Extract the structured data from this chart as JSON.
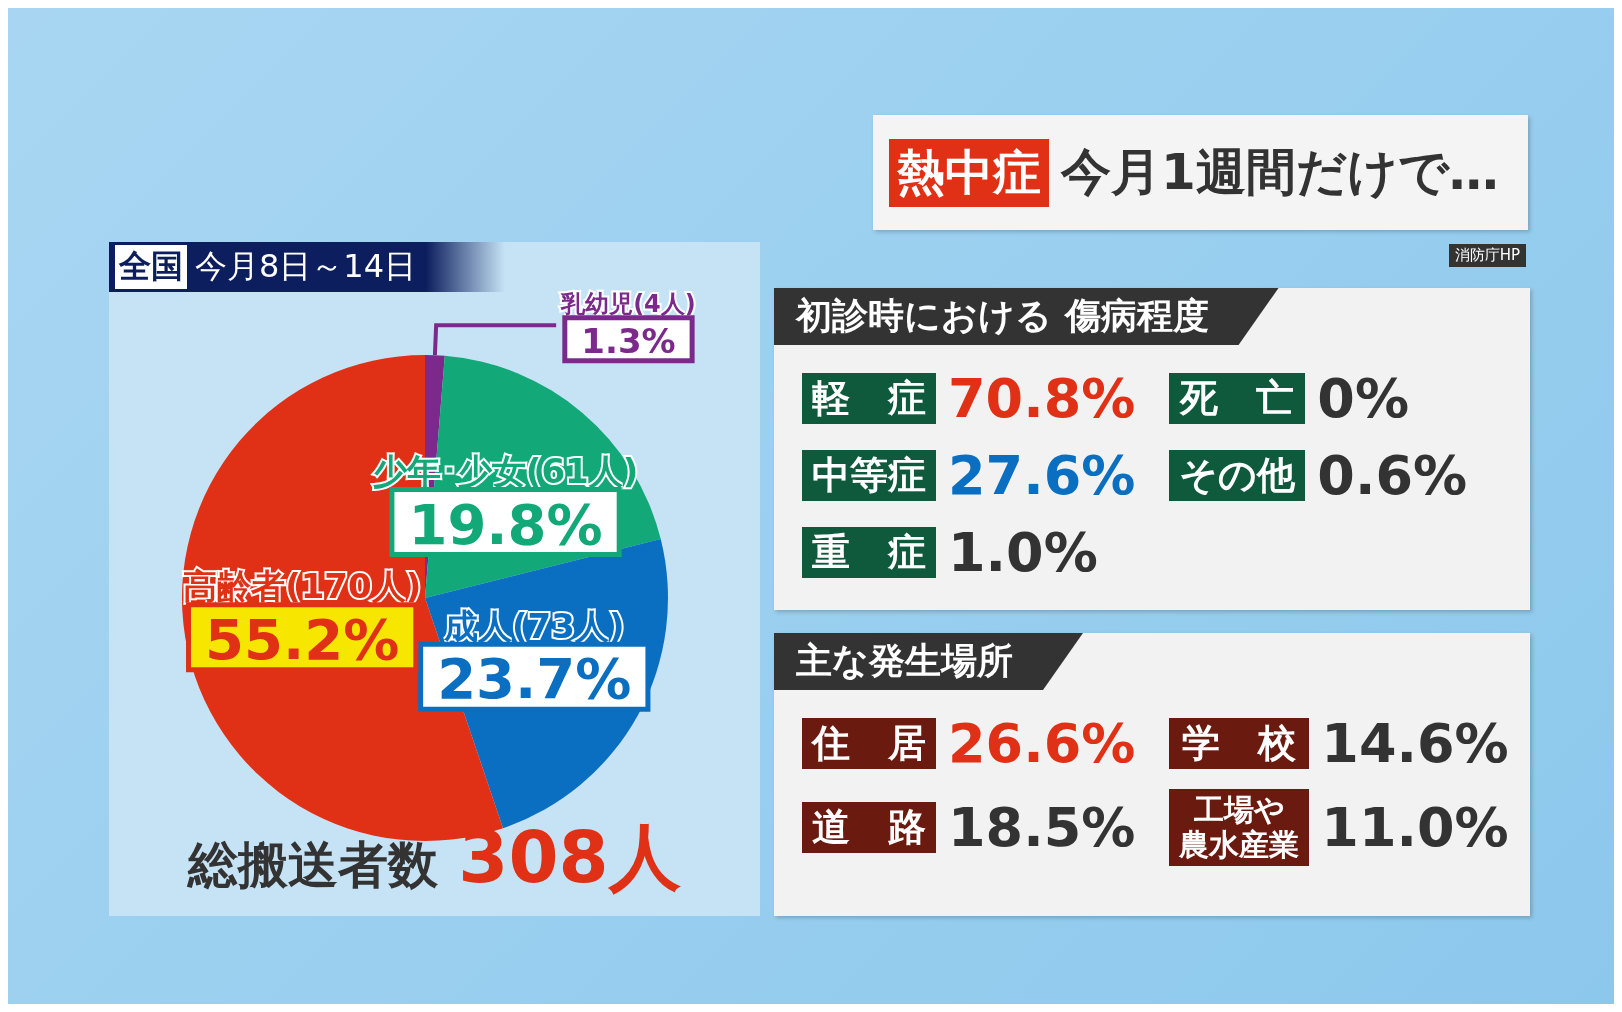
{
  "chart_data": [
    {
      "type": "other",
      "title": "熱中症 今月1週間だけで…",
      "annotations": [
        "消防庁HP"
      ]
    },
    {
      "type": "pie",
      "subtitle": "全国 今月8日～14日",
      "categories": [
        "乳幼児(4人)",
        "少年･少女(61人)",
        "成人(73人)",
        "高齢者(170人)"
      ],
      "values": [
        1.3,
        19.8,
        23.7,
        55.2
      ],
      "value_labels": [
        "1.3%",
        "19.8%",
        "23.7%",
        "55.2%"
      ],
      "colors": [
        "#7b2a8c",
        "#12a878",
        "#0a6fc0",
        "#e03016"
      ],
      "annotations": [
        "総搬送者数 308人"
      ],
      "legend": false
    },
    {
      "type": "other",
      "title": "初診時における 傷病程度",
      "categories": [
        "軽　症",
        "死　亡",
        "中等症",
        "その他",
        "重　症"
      ],
      "value_labels": [
        "70.8%",
        "0%",
        "27.6%",
        "0.6%",
        "1.0%"
      ]
    },
    {
      "type": "other",
      "title": "主な発生場所",
      "categories": [
        "住　居",
        "学　校",
        "道　路",
        "工場や農水産業"
      ],
      "value_labels": [
        "26.6%",
        "14.6%",
        "18.5%",
        "11.0%"
      ]
    }
  ]
}
